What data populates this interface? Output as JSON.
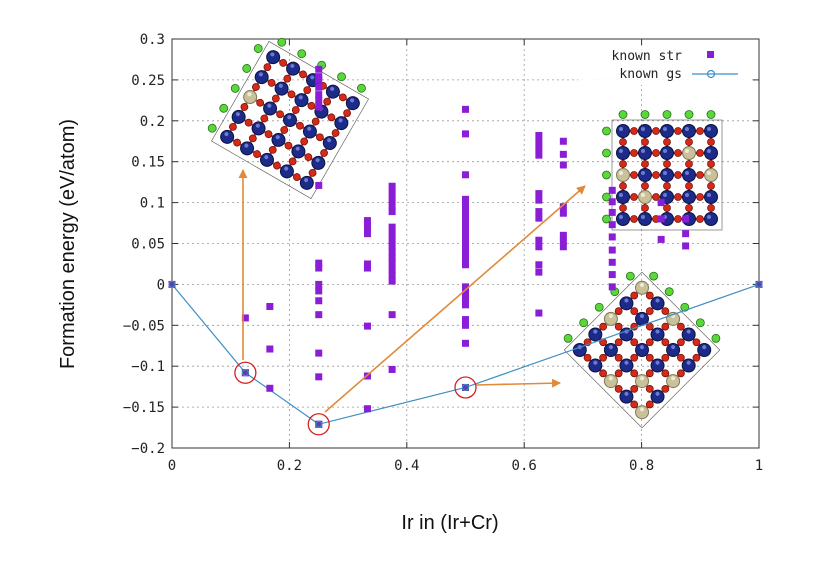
{
  "chart_data": {
    "type": "scatter",
    "xlabel": "Ir in (Ir+Cr)",
    "ylabel": "Formation energy (eV/atom)",
    "xlim": [
      0,
      1
    ],
    "ylim": [
      -0.2,
      0.3
    ],
    "xticks": [
      0,
      0.2,
      0.4,
      0.6,
      0.8,
      1
    ],
    "xtick_labels": [
      "0",
      "0.2",
      "0.4",
      "0.6",
      "0.8",
      "1"
    ],
    "yticks": [
      -0.2,
      -0.15,
      -0.1,
      -0.05,
      0,
      0.05,
      0.1,
      0.15,
      0.2,
      0.25,
      0.3
    ],
    "ytick_labels": [
      "−0.2",
      "−0.15",
      "−0.1",
      "−0.05",
      "0",
      "0.05",
      "0.1",
      "0.15",
      "0.2",
      "0.25",
      "0.3"
    ],
    "grid": true,
    "legend_position": "top-right",
    "colors": {
      "known_str": "#8a1ed6",
      "known_gs_line": "#3f8fc6",
      "highlight_circle": "#d62020",
      "arrow": "#e08a3a"
    },
    "series": [
      {
        "name": "known str",
        "marker": "square",
        "points": [
          [
            0.125,
            -0.041
          ],
          [
            0.125,
            -0.108
          ],
          [
            0.1667,
            -0.027
          ],
          [
            0.1667,
            -0.079
          ],
          [
            0.1667,
            -0.127
          ],
          [
            0.25,
            0.263
          ],
          [
            0.25,
            0.254
          ],
          [
            0.25,
            0.25
          ],
          [
            0.25,
            0.241
          ],
          [
            0.25,
            0.232
          ],
          [
            0.25,
            0.225
          ],
          [
            0.25,
            0.217
          ],
          [
            0.25,
            0.121
          ],
          [
            0.25,
            0.026
          ],
          [
            0.25,
            0.02
          ],
          [
            0.25,
            0.0
          ],
          [
            0.25,
            -0.008
          ],
          [
            0.25,
            -0.02
          ],
          [
            0.25,
            -0.037
          ],
          [
            0.25,
            -0.084
          ],
          [
            0.25,
            -0.113
          ],
          [
            0.25,
            -0.171
          ],
          [
            0.333,
            0.078
          ],
          [
            0.333,
            0.07
          ],
          [
            0.333,
            0.062
          ],
          [
            0.333,
            0.025
          ],
          [
            0.333,
            0.02
          ],
          [
            0.333,
            -0.051
          ],
          [
            0.333,
            -0.112
          ],
          [
            0.333,
            -0.152
          ],
          [
            0.375,
            0.12
          ],
          [
            0.375,
            0.112
          ],
          [
            0.375,
            0.104
          ],
          [
            0.375,
            0.096
          ],
          [
            0.375,
            0.089
          ],
          [
            0.375,
            0.07
          ],
          [
            0.375,
            0.062
          ],
          [
            0.375,
            0.054
          ],
          [
            0.375,
            0.047
          ],
          [
            0.375,
            0.04
          ],
          [
            0.375,
            0.033
          ],
          [
            0.375,
            0.026
          ],
          [
            0.375,
            0.018
          ],
          [
            0.375,
            0.011
          ],
          [
            0.375,
            0.004
          ],
          [
            0.375,
            -0.037
          ],
          [
            0.375,
            -0.104
          ],
          [
            0.5,
            0.214
          ],
          [
            0.5,
            0.184
          ],
          [
            0.5,
            0.134
          ],
          [
            0.5,
            0.104
          ],
          [
            0.5,
            0.096
          ],
          [
            0.5,
            0.089
          ],
          [
            0.5,
            0.082
          ],
          [
            0.5,
            0.074
          ],
          [
            0.5,
            0.067
          ],
          [
            0.5,
            0.06
          ],
          [
            0.5,
            0.053
          ],
          [
            0.5,
            0.046
          ],
          [
            0.5,
            0.038
          ],
          [
            0.5,
            0.031
          ],
          [
            0.5,
            0.024
          ],
          [
            0.5,
            -0.003
          ],
          [
            0.5,
            -0.01
          ],
          [
            0.5,
            -0.017
          ],
          [
            0.5,
            -0.025
          ],
          [
            0.5,
            -0.043
          ],
          [
            0.5,
            -0.05
          ],
          [
            0.5,
            -0.072
          ],
          [
            0.5,
            -0.126
          ],
          [
            0.625,
            0.182
          ],
          [
            0.625,
            0.174
          ],
          [
            0.625,
            0.166
          ],
          [
            0.625,
            0.158
          ],
          [
            0.625,
            0.111
          ],
          [
            0.625,
            0.103
          ],
          [
            0.625,
            0.089
          ],
          [
            0.625,
            0.081
          ],
          [
            0.625,
            0.054
          ],
          [
            0.625,
            0.046
          ],
          [
            0.625,
            0.024
          ],
          [
            0.625,
            0.015
          ],
          [
            0.625,
            -0.035
          ],
          [
            0.6667,
            0.175
          ],
          [
            0.6667,
            0.159
          ],
          [
            0.6667,
            0.146
          ],
          [
            0.6667,
            0.095
          ],
          [
            0.6667,
            0.087
          ],
          [
            0.6667,
            0.06
          ],
          [
            0.6667,
            0.053
          ],
          [
            0.6667,
            0.046
          ],
          [
            0.75,
            0.115
          ],
          [
            0.75,
            0.101
          ],
          [
            0.75,
            0.088
          ],
          [
            0.75,
            0.073
          ],
          [
            0.75,
            0.058
          ],
          [
            0.75,
            0.042
          ],
          [
            0.75,
            0.027
          ],
          [
            0.75,
            0.012
          ],
          [
            0.75,
            -0.003
          ],
          [
            0.8333,
            0.1
          ],
          [
            0.8333,
            0.08
          ],
          [
            0.8333,
            0.055
          ],
          [
            0.875,
            0.08
          ],
          [
            0.875,
            0.062
          ],
          [
            0.875,
            0.047
          ]
        ]
      },
      {
        "name": "known gs",
        "marker": "circle",
        "line": true,
        "points": [
          [
            0,
            0
          ],
          [
            0.125,
            -0.108
          ],
          [
            0.25,
            -0.171
          ],
          [
            0.5,
            -0.126
          ],
          [
            1,
            0
          ]
        ]
      }
    ],
    "highlighted_points": [
      [
        0.125,
        -0.108
      ],
      [
        0.25,
        -0.171
      ],
      [
        0.5,
        -0.126
      ]
    ]
  }
}
